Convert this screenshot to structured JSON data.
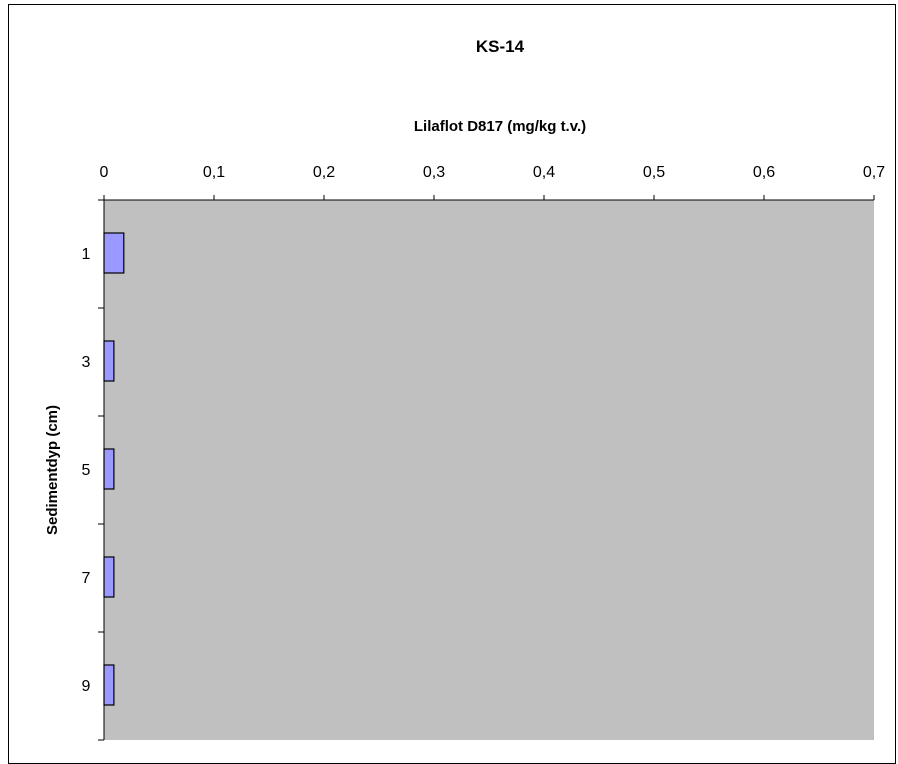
{
  "chart_data": {
    "type": "bar",
    "orientation": "horizontal",
    "title": "KS-14",
    "xlabel": "Lilaflot D817 (mg/kg t.v.)",
    "ylabel": "Sedimentdyp (cm)",
    "x_axis_position": "top",
    "y_axis_inverted": true,
    "xlim": [
      0,
      0.7
    ],
    "x_ticks": [
      0,
      0.1,
      0.2,
      0.3,
      0.4,
      0.5,
      0.6,
      0.7
    ],
    "x_tick_labels": [
      "0",
      "0,1",
      "0,2",
      "0,3",
      "0,4",
      "0,5",
      "0,6",
      "0,7"
    ],
    "categories": [
      "1",
      "3",
      "5",
      "7",
      "9"
    ],
    "values": [
      0.018,
      0.009,
      0.009,
      0.009,
      0.009
    ],
    "grid": false,
    "legend": "none",
    "colors": {
      "plot_background": "#c0c0c0",
      "bar_fill": "#9999ff",
      "bar_stroke": "#000000"
    }
  }
}
